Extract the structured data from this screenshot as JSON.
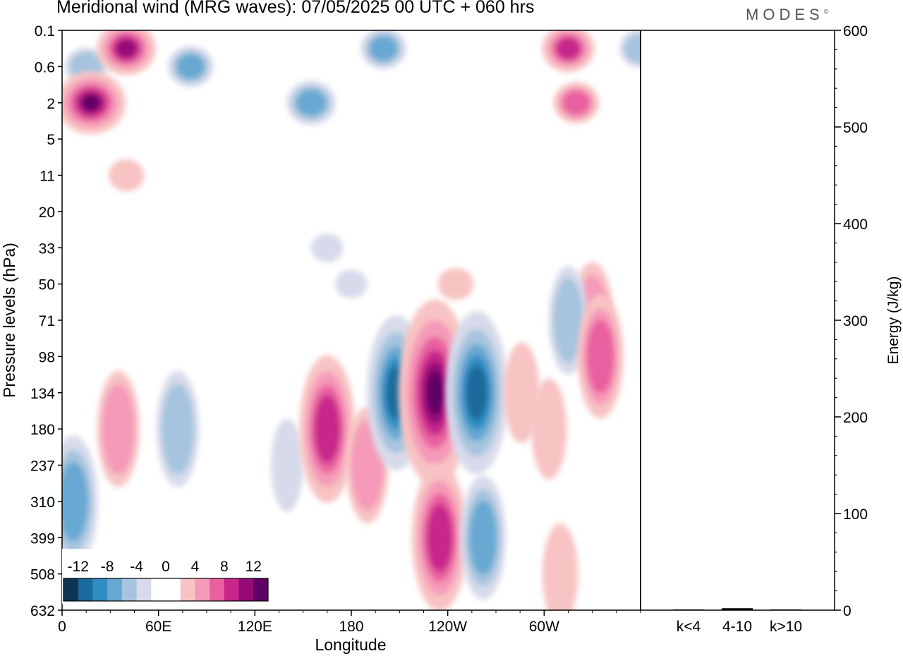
{
  "title": "Meridional wind (MRG waves):  07/05/2025  00 UTC  + 060 hrs",
  "logo": "MODES",
  "logo_mark": "©",
  "colors": {
    "neg": [
      "#0d3552",
      "#1b6a9b",
      "#2f8dc4",
      "#67a8d2",
      "#a6c4de",
      "#d7daea"
    ],
    "pos": [
      "#f8c3c3",
      "#f59ab8",
      "#e8619f",
      "#c7268a",
      "#960a78",
      "#5e0066"
    ]
  },
  "chart_data": [
    {
      "type": "contour",
      "xlabel": "Longitude",
      "ylabel": "Pressure levels (hPa)",
      "x_ticks": [
        "0",
        "60E",
        "120E",
        "180",
        "120W",
        "60W"
      ],
      "y_ticks": [
        "0.1",
        "0.6",
        "2",
        "5",
        "11",
        "20",
        "33",
        "50",
        "71",
        "98",
        "134",
        "180",
        "237",
        "310",
        "399",
        "508",
        "632"
      ],
      "colorbar": {
        "labels": [
          "-12",
          "-8",
          "-4",
          "0",
          "4",
          "8",
          "12"
        ],
        "levels": [
          -14,
          -12,
          -10,
          -8,
          -6,
          -4,
          -2,
          2,
          4,
          6,
          8,
          10,
          12,
          14
        ]
      },
      "features": [
        {
          "lon": 15,
          "lev": "0.6",
          "value": -5
        },
        {
          "lon": 40,
          "lev": "0.4",
          "value": 10
        },
        {
          "lon": 18,
          "lev": "2",
          "value": 13
        },
        {
          "lon": 80,
          "lev": "0.6",
          "value": -6
        },
        {
          "lon": 155,
          "lev": "2",
          "value": -7
        },
        {
          "lon": 200,
          "lev": "0.4",
          "value": -6
        },
        {
          "lon": 315,
          "lev": "0.4",
          "value": 8
        },
        {
          "lon": 320,
          "lev": "2",
          "value": 6
        },
        {
          "lon": 360,
          "lev": "0.4",
          "value": -5
        },
        {
          "lon": 40,
          "lev": "11",
          "value": 3
        },
        {
          "lon": 165,
          "lev": "33",
          "value": -2
        },
        {
          "lon": 180,
          "lev": "50",
          "value": -2
        },
        {
          "lon": 245,
          "lev": "50",
          "value": 3
        },
        {
          "lon": 330,
          "lev": "71",
          "value": 5
        },
        {
          "lon": 315,
          "lev": "71",
          "value": -4
        },
        {
          "lon": 7,
          "lev": "310",
          "value": -7
        },
        {
          "lon": 35,
          "lev": "180",
          "value": 5
        },
        {
          "lon": 72,
          "lev": "180",
          "value": -5
        },
        {
          "lon": 140,
          "lev": "237",
          "value": -2
        },
        {
          "lon": 165,
          "lev": "180",
          "value": 9
        },
        {
          "lon": 190,
          "lev": "237",
          "value": 5
        },
        {
          "lon": 208,
          "lev": "134",
          "value": -10
        },
        {
          "lon": 232,
          "lev": "134",
          "value": 14
        },
        {
          "lon": 235,
          "lev": "399",
          "value": 9
        },
        {
          "lon": 258,
          "lev": "134",
          "value": -11
        },
        {
          "lon": 262,
          "lev": "399",
          "value": -6
        },
        {
          "lon": 286,
          "lev": "134",
          "value": 3
        },
        {
          "lon": 303,
          "lev": "180",
          "value": 3
        },
        {
          "lon": 335,
          "lev": "98",
          "value": 6
        },
        {
          "lon": 310,
          "lev": "508",
          "value": 3
        }
      ]
    },
    {
      "type": "bar",
      "categories": [
        "k<4",
        "4-10",
        "k>10"
      ],
      "values": [
        0,
        2,
        0
      ],
      "ylabel": "Energy (J/kg)",
      "ylim": [
        0,
        600
      ],
      "y_ticks": [
        "0",
        "100",
        "200",
        "300",
        "400",
        "500",
        "600"
      ]
    }
  ]
}
